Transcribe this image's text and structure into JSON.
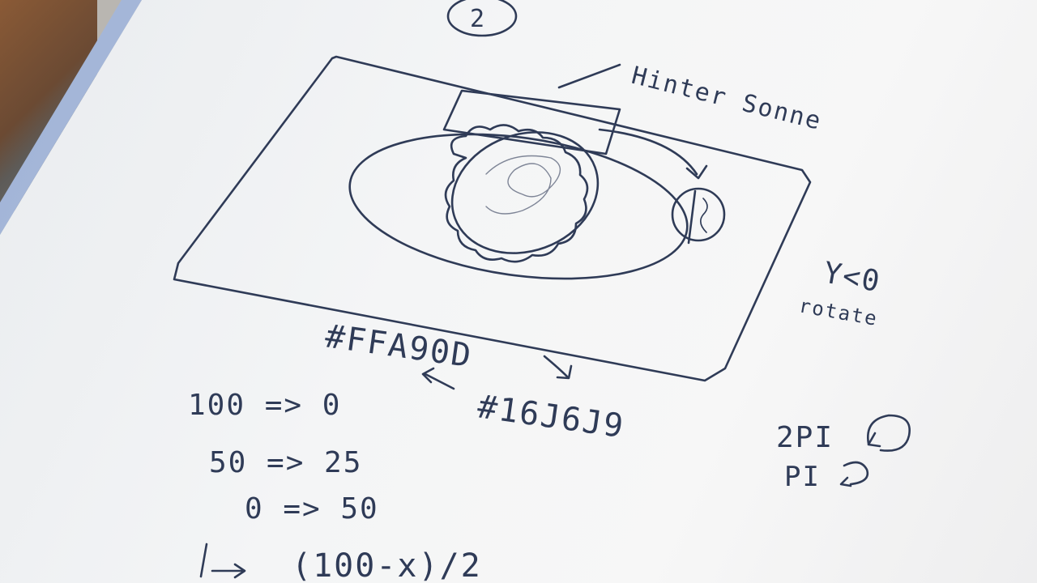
{
  "sketch": {
    "page_number": "2",
    "label_sun": "Hinter Sonne",
    "label_y_condition": "Y<0",
    "label_rotate": "rotate",
    "color_from": "#FFA90D",
    "color_to": "#16J6J9",
    "mapping": [
      "100 => 0",
      "50 => 25",
      "0 => 50",
      "(100-x)/2"
    ],
    "angle_full": "2PI",
    "angle_half": "PI"
  },
  "colors": {
    "ink": "#2f3b57",
    "paper": "#f4f5f6",
    "table": "#6b4a33"
  }
}
